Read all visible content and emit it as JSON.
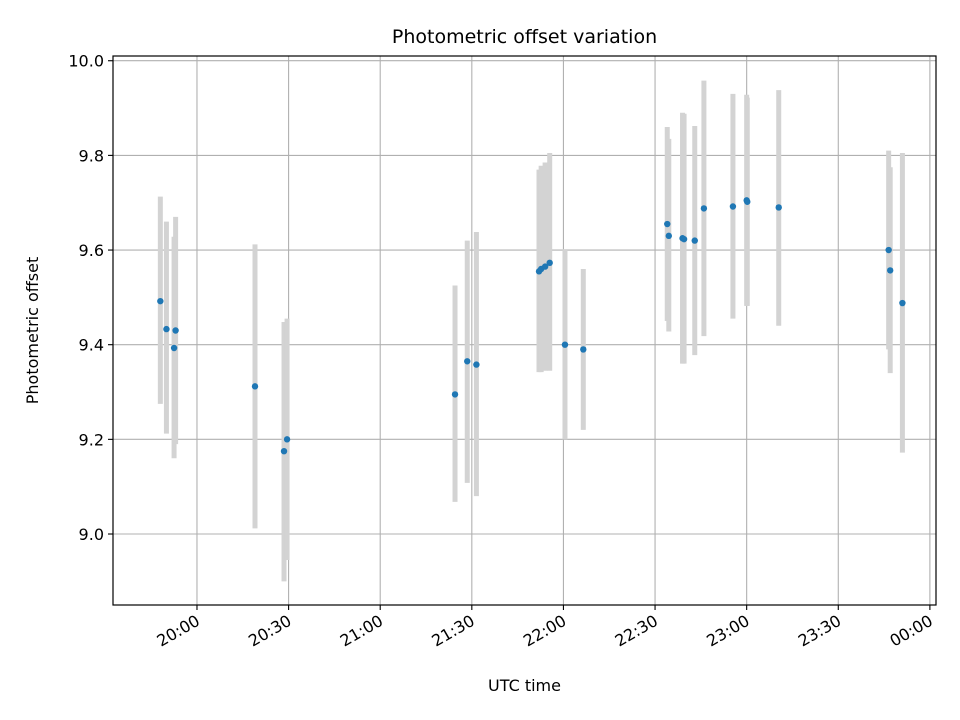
{
  "chart_data": {
    "type": "scatter",
    "title": "Photometric offset variation",
    "xlabel": "UTC time",
    "ylabel": "Photometric offset",
    "grid": true,
    "xlim_minutes": [
      1172.5,
      1442
    ],
    "ylim": [
      8.85,
      10.01
    ],
    "x_ticks": [
      {
        "minutes": 1200,
        "label": "20:00"
      },
      {
        "minutes": 1230,
        "label": "20:30"
      },
      {
        "minutes": 1260,
        "label": "21:00"
      },
      {
        "minutes": 1290,
        "label": "21:30"
      },
      {
        "minutes": 1320,
        "label": "22:00"
      },
      {
        "minutes": 1350,
        "label": "22:30"
      },
      {
        "minutes": 1380,
        "label": "23:00"
      },
      {
        "minutes": 1410,
        "label": "23:30"
      },
      {
        "minutes": 1440,
        "label": "00:00"
      }
    ],
    "y_ticks": [
      {
        "value": 9.0,
        "label": "9.0"
      },
      {
        "value": 9.2,
        "label": "9.2"
      },
      {
        "value": 9.4,
        "label": "9.4"
      },
      {
        "value": 9.6,
        "label": "9.6"
      },
      {
        "value": 9.8,
        "label": "9.8"
      },
      {
        "value": 10.0,
        "label": "10.0"
      }
    ],
    "marker_color": "#1f77b4",
    "errorbar_color": "#d3d3d3",
    "points": [
      {
        "t": 1188.0,
        "y": 9.492,
        "lo": 9.275,
        "hi": 9.713
      },
      {
        "t": 1190.0,
        "y": 9.433,
        "lo": 9.212,
        "hi": 9.66
      },
      {
        "t": 1192.5,
        "y": 9.393,
        "lo": 9.16,
        "hi": 9.628
      },
      {
        "t": 1193.0,
        "y": 9.43,
        "lo": 9.19,
        "hi": 9.67
      },
      {
        "t": 1219.0,
        "y": 9.312,
        "lo": 9.012,
        "hi": 9.612
      },
      {
        "t": 1228.5,
        "y": 9.175,
        "lo": 8.9,
        "hi": 9.448
      },
      {
        "t": 1229.5,
        "y": 9.2,
        "lo": 8.945,
        "hi": 9.455
      },
      {
        "t": 1284.5,
        "y": 9.295,
        "lo": 9.068,
        "hi": 9.525
      },
      {
        "t": 1288.5,
        "y": 9.365,
        "lo": 9.108,
        "hi": 9.62
      },
      {
        "t": 1291.5,
        "y": 9.358,
        "lo": 9.08,
        "hi": 9.638
      },
      {
        "t": 1312.0,
        "y": 9.555,
        "lo": 9.342,
        "hi": 9.77
      },
      {
        "t": 1312.7,
        "y": 9.56,
        "lo": 9.342,
        "hi": 9.778
      },
      {
        "t": 1314.0,
        "y": 9.565,
        "lo": 9.345,
        "hi": 9.785
      },
      {
        "t": 1315.5,
        "y": 9.573,
        "lo": 9.345,
        "hi": 9.805
      },
      {
        "t": 1320.5,
        "y": 9.4,
        "lo": 9.2,
        "hi": 9.602
      },
      {
        "t": 1326.5,
        "y": 9.39,
        "lo": 9.22,
        "hi": 9.56
      },
      {
        "t": 1354.0,
        "y": 9.655,
        "lo": 9.45,
        "hi": 9.86
      },
      {
        "t": 1354.5,
        "y": 9.63,
        "lo": 9.428,
        "hi": 9.835
      },
      {
        "t": 1359.0,
        "y": 9.625,
        "lo": 9.36,
        "hi": 9.89
      },
      {
        "t": 1359.5,
        "y": 9.623,
        "lo": 9.36,
        "hi": 9.888
      },
      {
        "t": 1363.0,
        "y": 9.62,
        "lo": 9.378,
        "hi": 9.862
      },
      {
        "t": 1366.0,
        "y": 9.688,
        "lo": 9.418,
        "hi": 9.958
      },
      {
        "t": 1375.5,
        "y": 9.692,
        "lo": 9.455,
        "hi": 9.93
      },
      {
        "t": 1380.0,
        "y": 9.705,
        "lo": 9.482,
        "hi": 9.928
      },
      {
        "t": 1380.2,
        "y": 9.702,
        "lo": 9.482,
        "hi": 9.922
      },
      {
        "t": 1390.5,
        "y": 9.69,
        "lo": 9.44,
        "hi": 9.938
      },
      {
        "t": 1426.5,
        "y": 9.6,
        "lo": 9.39,
        "hi": 9.81
      },
      {
        "t": 1427.0,
        "y": 9.557,
        "lo": 9.34,
        "hi": 9.775
      },
      {
        "t": 1431.0,
        "y": 9.488,
        "lo": 9.172,
        "hi": 9.805
      }
    ]
  }
}
